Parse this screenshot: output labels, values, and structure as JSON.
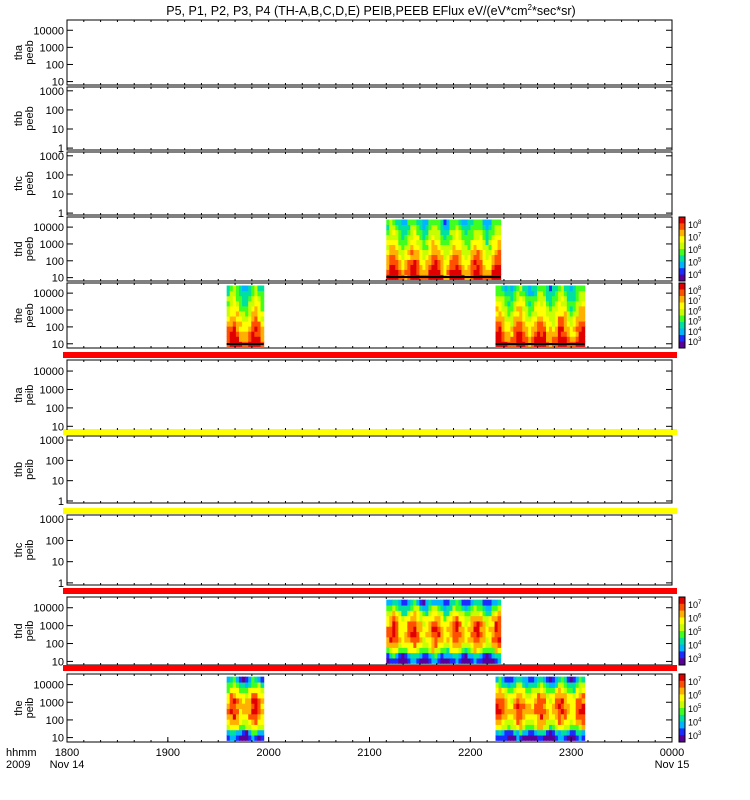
{
  "chart_data": {
    "type": "heatmap",
    "title": "P5, P1, P2, P3, P4 (TH-A,B,C,D,E) PEIB,PEEB EFlux eV/(eV*cm2*sec*sr)",
    "title_parts": {
      "main": "P5, P1, P2, P3, P4 (TH-A,B,C,D,E) PEIB,PEEB EFlux eV/(eV*cm",
      "sup": "2",
      "tail": "*sec*sr)"
    },
    "x_axis": {
      "row_label": "hhmm",
      "year_label": "2009",
      "ticks": [
        {
          "value": 1800,
          "label": "1800",
          "sub": "Nov 14"
        },
        {
          "value": 1900,
          "label": "1900",
          "sub": ""
        },
        {
          "value": 2000,
          "label": "2000",
          "sub": ""
        },
        {
          "value": 2100,
          "label": "2100",
          "sub": ""
        },
        {
          "value": 2200,
          "label": "2200",
          "sub": ""
        },
        {
          "value": 2300,
          "label": "2300",
          "sub": ""
        },
        {
          "value": 2400,
          "label": "0000",
          "sub": "Nov 15"
        }
      ],
      "range_minutes": [
        0,
        360
      ]
    },
    "y_scale": "log",
    "panels": [
      {
        "name": "tha peeb",
        "lines": [
          "tha",
          "peeb"
        ],
        "yticks": [
          "10000",
          "1000",
          "100",
          "10"
        ],
        "ylim_exp": [
          0.8,
          4.6
        ],
        "colorbar": false,
        "line": null,
        "blocks": []
      },
      {
        "name": "thb peeb",
        "lines": [
          "thb",
          "peeb"
        ],
        "yticks": [
          "1000",
          "100",
          "10",
          "1"
        ],
        "ylim_exp": [
          -0.1,
          3.2
        ],
        "colorbar": false,
        "line": null,
        "blocks": []
      },
      {
        "name": "thc peeb",
        "lines": [
          "thc",
          "peeb"
        ],
        "yticks": [
          "1000",
          "100",
          "10",
          "1"
        ],
        "ylim_exp": [
          -0.1,
          3.2
        ],
        "colorbar": false,
        "line": null,
        "blocks": []
      },
      {
        "name": "thd peeb",
        "lines": [
          "thd",
          "peeb"
        ],
        "yticks": [
          "10000",
          "1000",
          "100",
          "10"
        ],
        "ylim_exp": [
          0.8,
          4.6
        ],
        "colorbar": true,
        "cb_ticks": [
          "10",
          "10",
          "10",
          "10",
          "10"
        ],
        "cb_exps": [
          "8",
          "7",
          "6",
          "5",
          "4"
        ],
        "line": null,
        "blocks": [
          {
            "start_min": 190,
            "end_min": 258,
            "style": "electron"
          }
        ]
      },
      {
        "name": "the peeb",
        "lines": [
          "the",
          "peeb"
        ],
        "yticks": [
          "10000",
          "1000",
          "100",
          "10"
        ],
        "ylim_exp": [
          0.75,
          4.6
        ],
        "colorbar": true,
        "cb_ticks": [
          "10",
          "10",
          "10",
          "10",
          "10",
          "10"
        ],
        "cb_exps": [
          "8",
          "7",
          "6",
          "5",
          "4",
          "3"
        ],
        "line": "#ff0000",
        "blocks": [
          {
            "start_min": 95,
            "end_min": 117,
            "style": "electron"
          },
          {
            "start_min": 255,
            "end_min": 308,
            "style": "electron"
          }
        ]
      },
      {
        "name": "tha peib",
        "lines": [
          "tha",
          "peib"
        ],
        "yticks": [
          "10000",
          "1000",
          "100",
          "10"
        ],
        "ylim_exp": [
          0.8,
          4.6
        ],
        "colorbar": false,
        "line": "#ffff00",
        "blocks": []
      },
      {
        "name": "thb peib",
        "lines": [
          "thb",
          "peib"
        ],
        "yticks": [
          "1000",
          "100",
          "10",
          "1"
        ],
        "ylim_exp": [
          -0.1,
          3.2
        ],
        "colorbar": false,
        "line": "#ffff00",
        "blocks": []
      },
      {
        "name": "thc peib",
        "lines": [
          "thc",
          "peib"
        ],
        "yticks": [
          "1000",
          "100",
          "10",
          "1"
        ],
        "ylim_exp": [
          -0.1,
          3.2
        ],
        "colorbar": false,
        "line": "#ff0000",
        "blocks": []
      },
      {
        "name": "thd peib",
        "lines": [
          "thd",
          "peib"
        ],
        "yticks": [
          "10000",
          "1000",
          "100",
          "10"
        ],
        "ylim_exp": [
          0.8,
          4.6
        ],
        "colorbar": true,
        "cb_ticks": [
          "10",
          "10",
          "10",
          "10",
          "10"
        ],
        "cb_exps": [
          "7",
          "6",
          "5",
          "4",
          "3"
        ],
        "line": "#ff0000",
        "blocks": [
          {
            "start_min": 190,
            "end_min": 258,
            "style": "ion"
          }
        ]
      },
      {
        "name": "the peib",
        "lines": [
          "the",
          "peib"
        ],
        "yticks": [
          "10000",
          "1000",
          "100",
          "10"
        ],
        "ylim_exp": [
          0.75,
          4.6
        ],
        "colorbar": true,
        "cb_ticks": [
          "10",
          "10",
          "10",
          "10",
          "10"
        ],
        "cb_exps": [
          "7",
          "6",
          "5",
          "4",
          "3"
        ],
        "line": null,
        "blocks": [
          {
            "start_min": 95,
            "end_min": 117,
            "style": "ion"
          },
          {
            "start_min": 255,
            "end_min": 308,
            "style": "ion"
          }
        ]
      }
    ],
    "colormap": [
      "#5a009a",
      "#1a2cff",
      "#00b4ff",
      "#00e0a0",
      "#40ff20",
      "#c8ff00",
      "#ffff00",
      "#ffb000",
      "#ff5000",
      "#e00000"
    ]
  }
}
